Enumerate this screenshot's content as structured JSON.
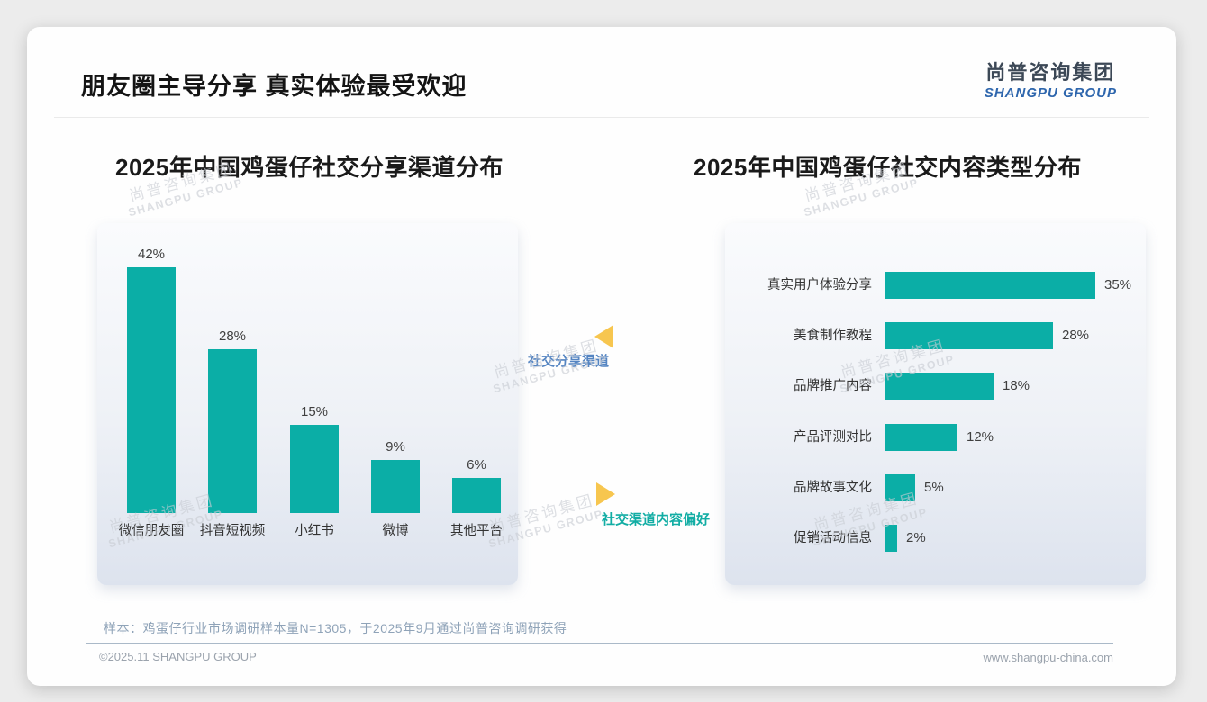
{
  "header": {
    "title": "朋友圈主导分享 真实体验最受欢迎",
    "logo_cn": "尚普咨询集团",
    "logo_en": "SHANGPU GROUP"
  },
  "middle": {
    "top_label": "社交分享渠道",
    "bottom_label": "社交渠道内容偏好"
  },
  "watermark": {
    "line1": "尚普咨询集团",
    "line2": "SHANGPU GROUP"
  },
  "footer": {
    "note": "样本：鸡蛋仔行业市场调研样本量N=1305，于2025年9月通过尚普咨询调研获得",
    "copyright": "©2025.11 SHANGPU GROUP",
    "website": "www.shangpu-china.com"
  },
  "colors": {
    "bar": "#0BAEA6",
    "accent_blue": "#5585C2",
    "accent_teal": "#12ADA4",
    "triangle": "#F7C64F"
  },
  "chart_data": [
    {
      "type": "bar",
      "orientation": "vertical",
      "title": "2025年中国鸡蛋仔社交分享渠道分布",
      "categories": [
        "微信朋友圈",
        "抖音短视频",
        "小红书",
        "微博",
        "其他平台"
      ],
      "values": [
        42,
        28,
        15,
        9,
        6
      ],
      "unit": "%",
      "bar_color": "#0BAEA6",
      "value_labels": [
        "42%",
        "28%",
        "15%",
        "9%",
        "6%"
      ],
      "ylim": [
        0,
        45
      ],
      "grid": false,
      "legend": "none"
    },
    {
      "type": "bar",
      "orientation": "horizontal",
      "title": "2025年中国鸡蛋仔社交内容类型分布",
      "categories": [
        "真实用户体验分享",
        "美食制作教程",
        "品牌推广内容",
        "产品评测对比",
        "品牌故事文化",
        "促销活动信息"
      ],
      "values": [
        35,
        28,
        18,
        12,
        5,
        2
      ],
      "unit": "%",
      "bar_color": "#0BAEA6",
      "value_labels": [
        "35%",
        "28%",
        "18%",
        "12%",
        "5%",
        "2%"
      ],
      "xlim": [
        0,
        40
      ],
      "grid": false,
      "legend": "none"
    }
  ]
}
